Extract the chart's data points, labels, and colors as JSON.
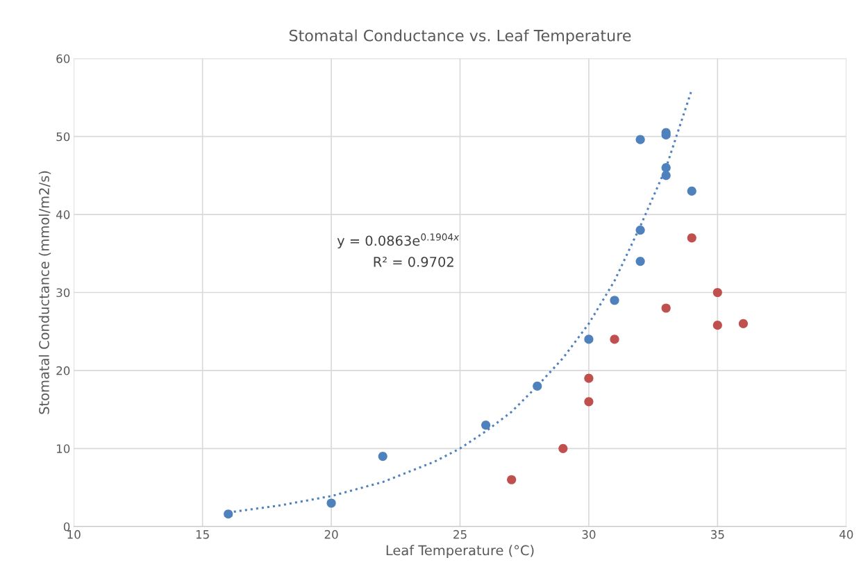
{
  "chart_data": {
    "type": "scatter",
    "title": "Stomatal Conductance vs. Leaf Temperature",
    "xlabel": "Leaf Temperature (°C)",
    "ylabel": "Stomatal Conductance (mmol/m2/s)",
    "xlim": [
      10,
      40
    ],
    "xticks": [
      10,
      15,
      20,
      25,
      30,
      35,
      40
    ],
    "ylim": [
      0,
      60
    ],
    "yticks": [
      0,
      10,
      20,
      30,
      40,
      50,
      60
    ],
    "grid": true,
    "marker": "circle",
    "annotations": [
      "y = 0.0863e$^{0.1904x}$",
      "R² = 0.9702"
    ],
    "series": [
      {
        "color": "#4f81bd",
        "x": [
          16,
          20,
          22,
          26,
          28,
          30,
          31,
          32,
          32,
          32,
          33,
          33,
          33,
          33,
          34
        ],
        "values": [
          1.6,
          3,
          9,
          13,
          18,
          24,
          29,
          34,
          38,
          49.6,
          50.5,
          50.2,
          46,
          45,
          43
        ]
      },
      {
        "color": "#c0504d",
        "x": [
          27,
          29,
          30,
          30,
          31,
          33,
          34,
          35,
          35,
          36
        ],
        "values": [
          6,
          10,
          19,
          16,
          24,
          28,
          37,
          30,
          25.8,
          26
        ]
      },
      {
        "type": "line",
        "color": "#4f81bd",
        "line_style": "dotted",
        "marker": "none",
        "x": [
          16,
          18,
          20,
          22,
          24,
          25,
          26,
          27,
          28,
          29,
          30,
          31,
          32,
          33,
          34
        ],
        "values": [
          1.8,
          2.7,
          3.9,
          5.7,
          8.3,
          10,
          12.2,
          14.7,
          18,
          21.6,
          26,
          31.5,
          38.5,
          46,
          56
        ]
      }
    ]
  }
}
